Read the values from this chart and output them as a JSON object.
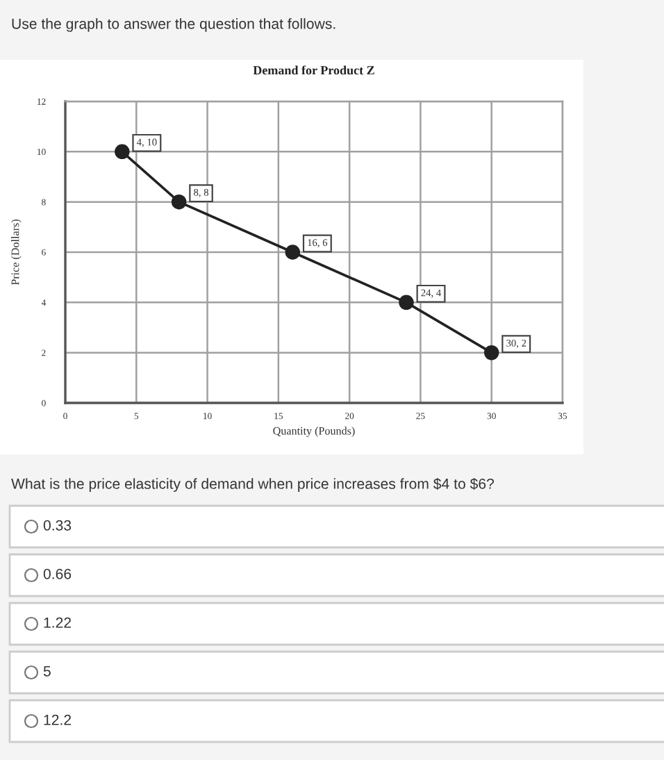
{
  "chart_data": {
    "type": "line",
    "title": "Demand for Product Z",
    "xlabel": "Quantity (Pounds)",
    "ylabel": "Price (Dollars)",
    "x": [
      4,
      8,
      16,
      24,
      30
    ],
    "values": [
      10,
      8,
      6,
      4,
      2
    ],
    "color": "#222222",
    "marker": "circle",
    "value_labels": [
      "4, 10",
      "8, 8",
      "16, 6",
      "24, 4",
      "30, 2"
    ],
    "xlim": [
      0,
      35
    ],
    "xticks": [
      0,
      5,
      10,
      15,
      20,
      25,
      30,
      35
    ],
    "ylim": [
      0,
      12
    ],
    "yticks": [
      0,
      2,
      4,
      6,
      8,
      10,
      12
    ],
    "grid": true,
    "annotations": [
      "Use the graph to answer the question that follows.",
      "What is the price elasticity of demand when price increases from $4 to $6?",
      "0.33",
      "0.66",
      "1.22",
      "5",
      "12.2"
    ]
  }
}
